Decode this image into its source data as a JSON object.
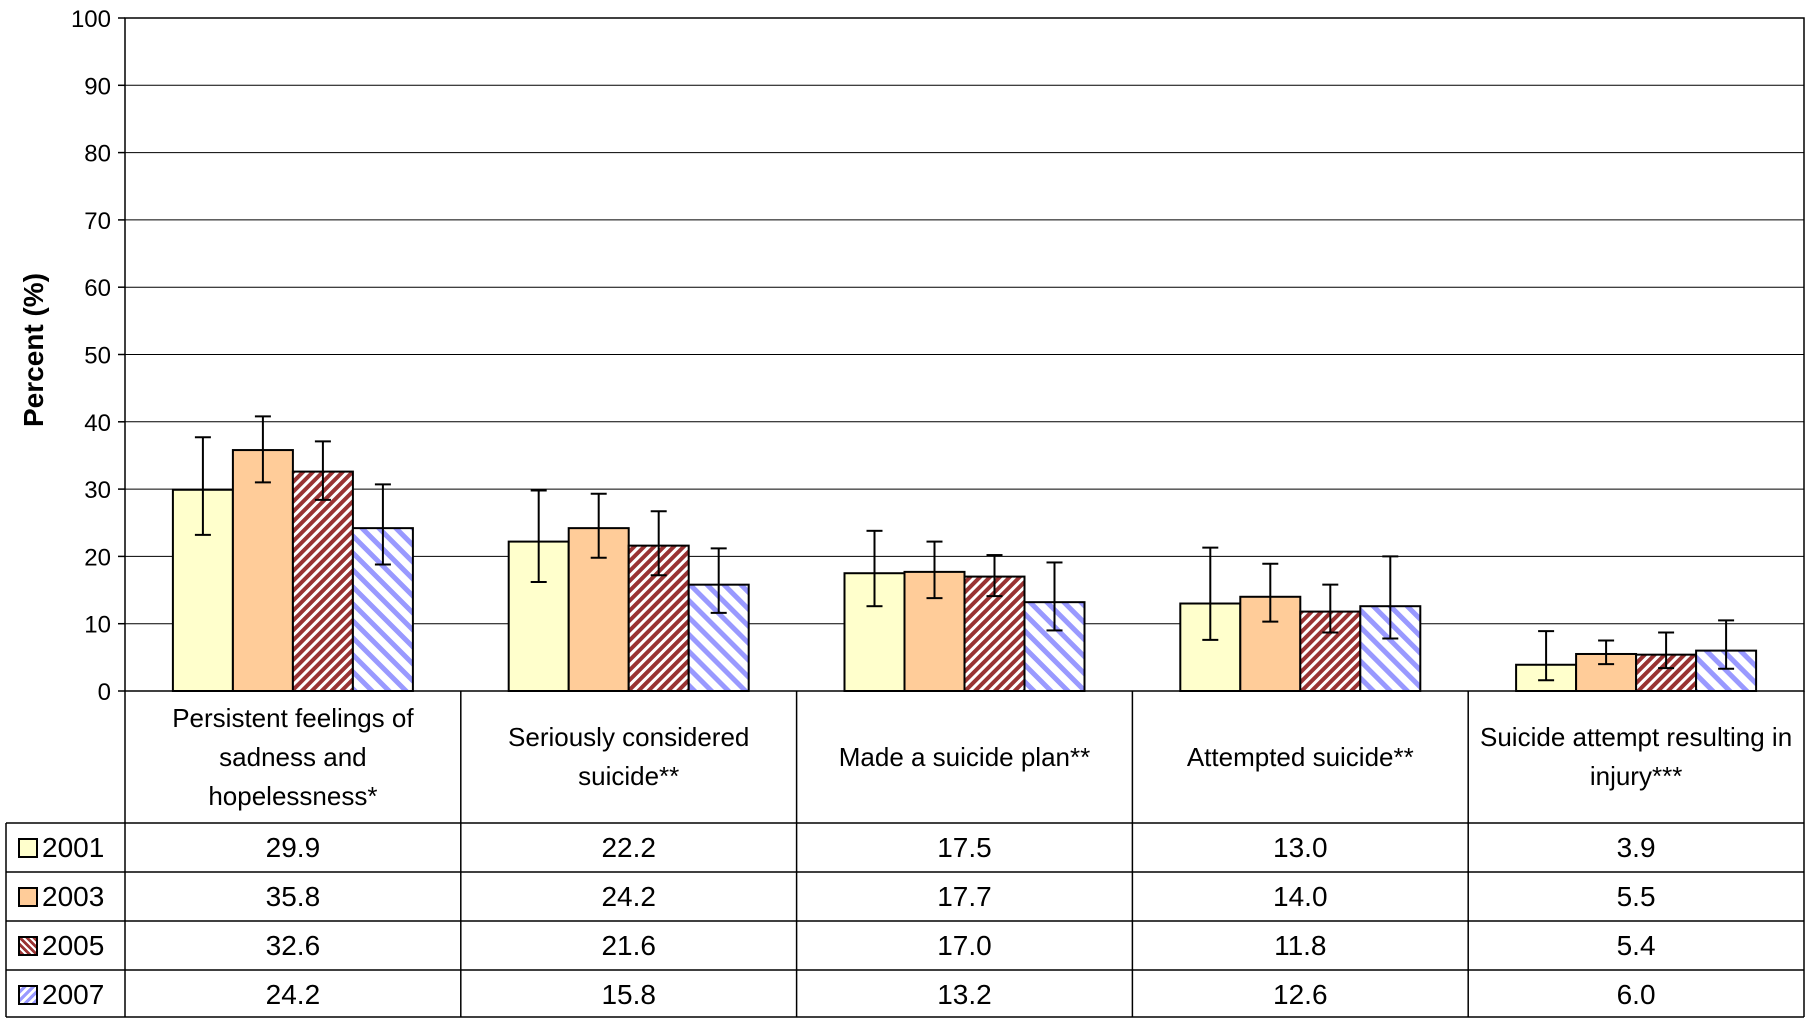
{
  "chart_data": {
    "type": "bar",
    "title": "",
    "xlabel": "",
    "ylabel": "Percent (%)",
    "ylim": [
      0,
      100
    ],
    "yticks": [
      "0",
      "10",
      "20",
      "30",
      "40",
      "50",
      "60",
      "70",
      "80",
      "90",
      "100"
    ],
    "grid": true,
    "legend": "data-table",
    "categories": [
      "Persistent feelings of sadness and hopelessness*",
      "Seriously considered suicide**",
      "Made a suicide plan**",
      "Attempted suicide**",
      "Suicide attempt resulting in injury***"
    ],
    "series": [
      {
        "name": "2001",
        "color": "#FFFFCC",
        "pattern": "solid",
        "values": [
          29.9,
          22.2,
          17.5,
          13.0,
          3.9
        ],
        "values_text": [
          "29.9",
          "22.2",
          "17.5",
          "13.0",
          "3.9"
        ],
        "error_low": [
          23.2,
          16.2,
          12.6,
          7.6,
          1.6
        ],
        "error_high": [
          37.7,
          29.8,
          23.8,
          21.3,
          8.9
        ]
      },
      {
        "name": "2003",
        "color": "#FFCC99",
        "pattern": "solid",
        "values": [
          35.8,
          24.2,
          17.7,
          14.0,
          5.5
        ],
        "values_text": [
          "35.8",
          "24.2",
          "17.7",
          "14.0",
          "5.5"
        ],
        "error_low": [
          31.0,
          19.8,
          13.8,
          10.3,
          4.0
        ],
        "error_high": [
          40.8,
          29.3,
          22.2,
          18.9,
          7.5
        ]
      },
      {
        "name": "2005",
        "color": "#993333",
        "pattern": "diagonal-dense",
        "values": [
          32.6,
          21.6,
          17.0,
          11.8,
          5.4
        ],
        "values_text": [
          "32.6",
          "21.6",
          "17.0",
          "11.8",
          "5.4"
        ],
        "error_low": [
          28.4,
          17.2,
          14.1,
          8.7,
          3.4
        ],
        "error_high": [
          37.1,
          26.7,
          20.2,
          15.8,
          8.7
        ]
      },
      {
        "name": "2007",
        "color": "#9999FF",
        "pattern": "diagonal-wide",
        "values": [
          24.2,
          15.8,
          13.2,
          12.6,
          6.0
        ],
        "values_text": [
          "24.2",
          "15.8",
          "13.2",
          "12.6",
          "6.0"
        ],
        "error_low": [
          18.8,
          11.6,
          9.0,
          7.8,
          3.3
        ],
        "error_high": [
          30.7,
          21.2,
          19.1,
          20.0,
          10.5
        ]
      }
    ]
  }
}
